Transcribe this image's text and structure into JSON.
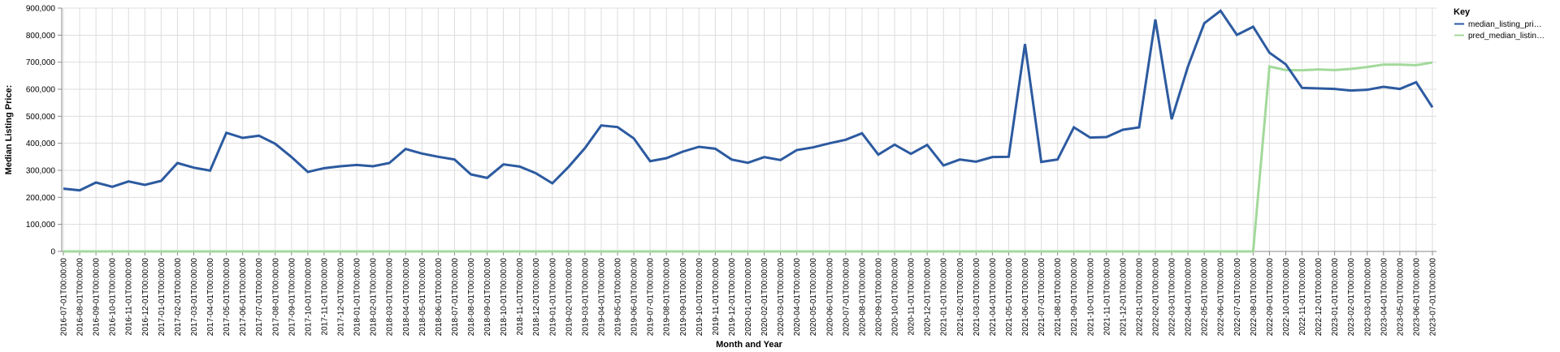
{
  "chart_data": {
    "type": "line",
    "xlabel": "Month and Year",
    "ylabel": "Median Listing Price:",
    "ylim": [
      0,
      900000
    ],
    "yticks": [
      "0",
      "100,000",
      "200,000",
      "300,000",
      "400,000",
      "500,000",
      "600,000",
      "700,000",
      "800,000",
      "900,000"
    ],
    "grid": true,
    "legend": {
      "title": "Key",
      "placement": "right",
      "entries": [
        "median_listing_pri…",
        "pred_median_listin…"
      ]
    },
    "categories": [
      "2016-07-01T00:00:00",
      "2016-08-01T00:00:00",
      "2016-09-01T00:00:00",
      "2016-10-01T00:00:00",
      "2016-11-01T00:00:00",
      "2016-12-01T00:00:00",
      "2017-01-01T00:00:00",
      "2017-02-01T00:00:00",
      "2017-03-01T00:00:00",
      "2017-04-01T00:00:00",
      "2017-05-01T00:00:00",
      "2017-06-01T00:00:00",
      "2017-07-01T00:00:00",
      "2017-08-01T00:00:00",
      "2017-09-01T00:00:00",
      "2017-10-01T00:00:00",
      "2017-11-01T00:00:00",
      "2017-12-01T00:00:00",
      "2018-01-01T00:00:00",
      "2018-02-01T00:00:00",
      "2018-03-01T00:00:00",
      "2018-04-01T00:00:00",
      "2018-05-01T00:00:00",
      "2018-06-01T00:00:00",
      "2018-07-01T00:00:00",
      "2018-08-01T00:00:00",
      "2018-09-01T00:00:00",
      "2018-10-01T00:00:00",
      "2018-11-01T00:00:00",
      "2018-12-01T00:00:00",
      "2019-01-01T00:00:00",
      "2019-02-01T00:00:00",
      "2019-03-01T00:00:00",
      "2019-04-01T00:00:00",
      "2019-05-01T00:00:00",
      "2019-06-01T00:00:00",
      "2019-07-01T00:00:00",
      "2019-08-01T00:00:00",
      "2019-09-01T00:00:00",
      "2019-10-01T00:00:00",
      "2019-11-01T00:00:00",
      "2019-12-01T00:00:00",
      "2020-01-01T00:00:00",
      "2020-02-01T00:00:00",
      "2020-03-01T00:00:00",
      "2020-04-01T00:00:00",
      "2020-05-01T00:00:00",
      "2020-06-01T00:00:00",
      "2020-07-01T00:00:00",
      "2020-08-01T00:00:00",
      "2020-09-01T00:00:00",
      "2020-10-01T00:00:00",
      "2020-11-01T00:00:00",
      "2020-12-01T00:00:00",
      "2021-01-01T00:00:00",
      "2021-02-01T00:00:00",
      "2021-03-01T00:00:00",
      "2021-04-01T00:00:00",
      "2021-05-01T00:00:00",
      "2021-06-01T00:00:00",
      "2021-07-01T00:00:00",
      "2021-08-01T00:00:00",
      "2021-09-01T00:00:00",
      "2021-10-01T00:00:00",
      "2021-11-01T00:00:00",
      "2021-12-01T00:00:00",
      "2022-01-01T00:00:00",
      "2022-02-01T00:00:00",
      "2022-03-01T00:00:00",
      "2022-04-01T00:00:00",
      "2022-05-01T00:00:00",
      "2022-06-01T00:00:00",
      "2022-07-01T00:00:00",
      "2022-08-01T00:00:00",
      "2022-09-01T00:00:00",
      "2022-10-01T00:00:00",
      "2022-11-01T00:00:00",
      "2022-12-01T00:00:00",
      "2023-01-01T00:00:00",
      "2023-02-01T00:00:00",
      "2023-03-01T00:00:00",
      "2023-04-01T00:00:00",
      "2023-05-01T00:00:00",
      "2023-06-01T00:00:00",
      "2023-07-01T00:00:00"
    ],
    "series": [
      {
        "name": "median_listing_pri…",
        "color": "#2c5aa0",
        "values": [
          232000,
          226000,
          255000,
          239000,
          259000,
          246000,
          261000,
          327000,
          310000,
          299000,
          439000,
          420000,
          428000,
          398000,
          349000,
          294000,
          308000,
          315000,
          320000,
          315000,
          327000,
          379000,
          362000,
          350000,
          340000,
          285000,
          272000,
          322000,
          314000,
          289000,
          252000,
          313000,
          382000,
          466000,
          460000,
          418000,
          334000,
          345000,
          369000,
          387000,
          380000,
          340000,
          328000,
          349000,
          338000,
          375000,
          385000,
          400000,
          413000,
          437000,
          358000,
          395000,
          361000,
          394000,
          318000,
          340000,
          332000,
          349000,
          350000,
          767000,
          331000,
          340000,
          459000,
          421000,
          423000,
          450000,
          459000,
          858000,
          489000,
          684000,
          844000,
          890000,
          801000,
          831000,
          735000,
          692000,
          605000,
          603000,
          601000,
          595000,
          598000,
          609000,
          601000,
          626000,
          533000
        ]
      },
      {
        "name": "pred_median_listin…",
        "color": "#a3d99b",
        "values": [
          0,
          0,
          0,
          0,
          0,
          0,
          0,
          0,
          0,
          0,
          0,
          0,
          0,
          0,
          0,
          0,
          0,
          0,
          0,
          0,
          0,
          0,
          0,
          0,
          0,
          0,
          0,
          0,
          0,
          0,
          0,
          0,
          0,
          0,
          0,
          0,
          0,
          0,
          0,
          0,
          0,
          0,
          0,
          0,
          0,
          0,
          0,
          0,
          0,
          0,
          0,
          0,
          0,
          0,
          0,
          0,
          0,
          0,
          0,
          0,
          0,
          0,
          0,
          0,
          0,
          0,
          0,
          0,
          0,
          0,
          0,
          0,
          0,
          0,
          684000,
          671000,
          670000,
          673000,
          671000,
          675000,
          682000,
          691000,
          691000,
          689000,
          699000
        ]
      }
    ]
  }
}
